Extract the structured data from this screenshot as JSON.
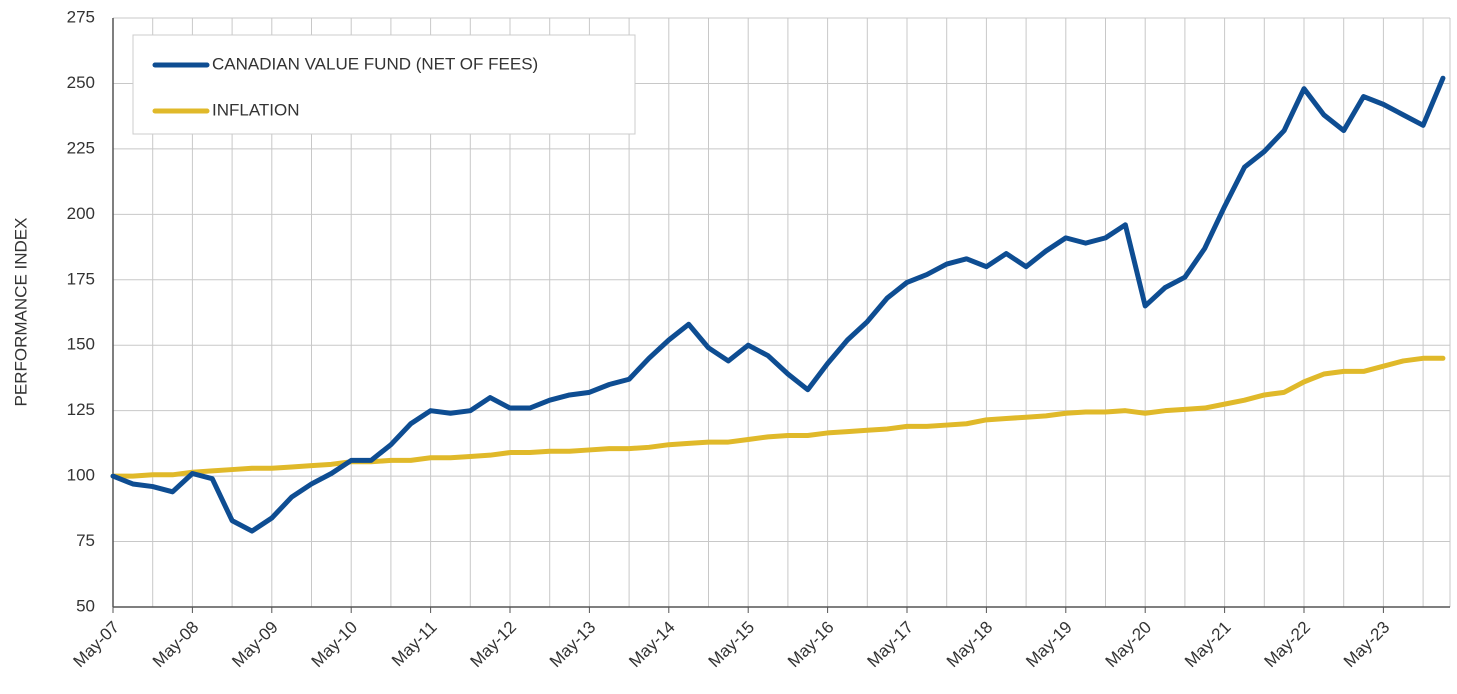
{
  "chart_data": {
    "type": "line",
    "y_label": "PERFORMANCE INDEX",
    "categories": [
      "May-07",
      null,
      null,
      null,
      "May-08",
      null,
      null,
      null,
      "May-09",
      null,
      null,
      null,
      "May-10",
      null,
      null,
      null,
      "May-11",
      null,
      null,
      null,
      "May-12",
      null,
      null,
      null,
      "May-13",
      null,
      null,
      null,
      "May-14",
      null,
      null,
      null,
      "May-15",
      null,
      null,
      null,
      "May-16",
      null,
      null,
      null,
      "May-17",
      null,
      null,
      null,
      "May-18",
      null,
      null,
      null,
      "May-19",
      null,
      null,
      null,
      "May-20",
      null,
      null,
      null,
      "May-21",
      null,
      null,
      null,
      "May-22",
      null,
      null,
      null,
      "May-23",
      null,
      null,
      null
    ],
    "series": [
      {
        "name": "CANADIAN VALUE FUND (NET OF FEES)",
        "color": "#0e4d92",
        "values": [
          100,
          97,
          96,
          94,
          101,
          99,
          83,
          79,
          84,
          92,
          97,
          101,
          106,
          106,
          112,
          120,
          125,
          124,
          125,
          130,
          126,
          126,
          129,
          131,
          132,
          135,
          137,
          145,
          152,
          158,
          149,
          144,
          150,
          146,
          139,
          133,
          143,
          152,
          159,
          168,
          174,
          177,
          181,
          183,
          180,
          185,
          180,
          186,
          191,
          189,
          191,
          196,
          165,
          172,
          176,
          187,
          203,
          218,
          224,
          232,
          248,
          238,
          232,
          245,
          242,
          238,
          234,
          252
        ]
      },
      {
        "name": "INFLATION",
        "color": "#e0b92a",
        "values": [
          100,
          100,
          100.5,
          100.5,
          101.5,
          102,
          102.5,
          103,
          103,
          103.5,
          104,
          104.5,
          105.5,
          105.5,
          106,
          106,
          107,
          107,
          107.5,
          108,
          109,
          109,
          109.5,
          109.5,
          110,
          110.5,
          110.5,
          111,
          112,
          112.5,
          113,
          113,
          114,
          115,
          115.5,
          115.5,
          116.5,
          117,
          117.5,
          118,
          119,
          119,
          119.5,
          120,
          121.5,
          122,
          122.5,
          123,
          124,
          124.5,
          124.5,
          125,
          124,
          125,
          125.5,
          126,
          127.5,
          129,
          131,
          132,
          136,
          139,
          140,
          140,
          142,
          144,
          145,
          145
        ]
      }
    ],
    "ylim": [
      50,
      275
    ],
    "yticks": [
      50,
      75,
      100,
      125,
      150,
      175,
      200,
      225,
      250,
      275
    ],
    "grid": true,
    "legend": "top-left"
  }
}
